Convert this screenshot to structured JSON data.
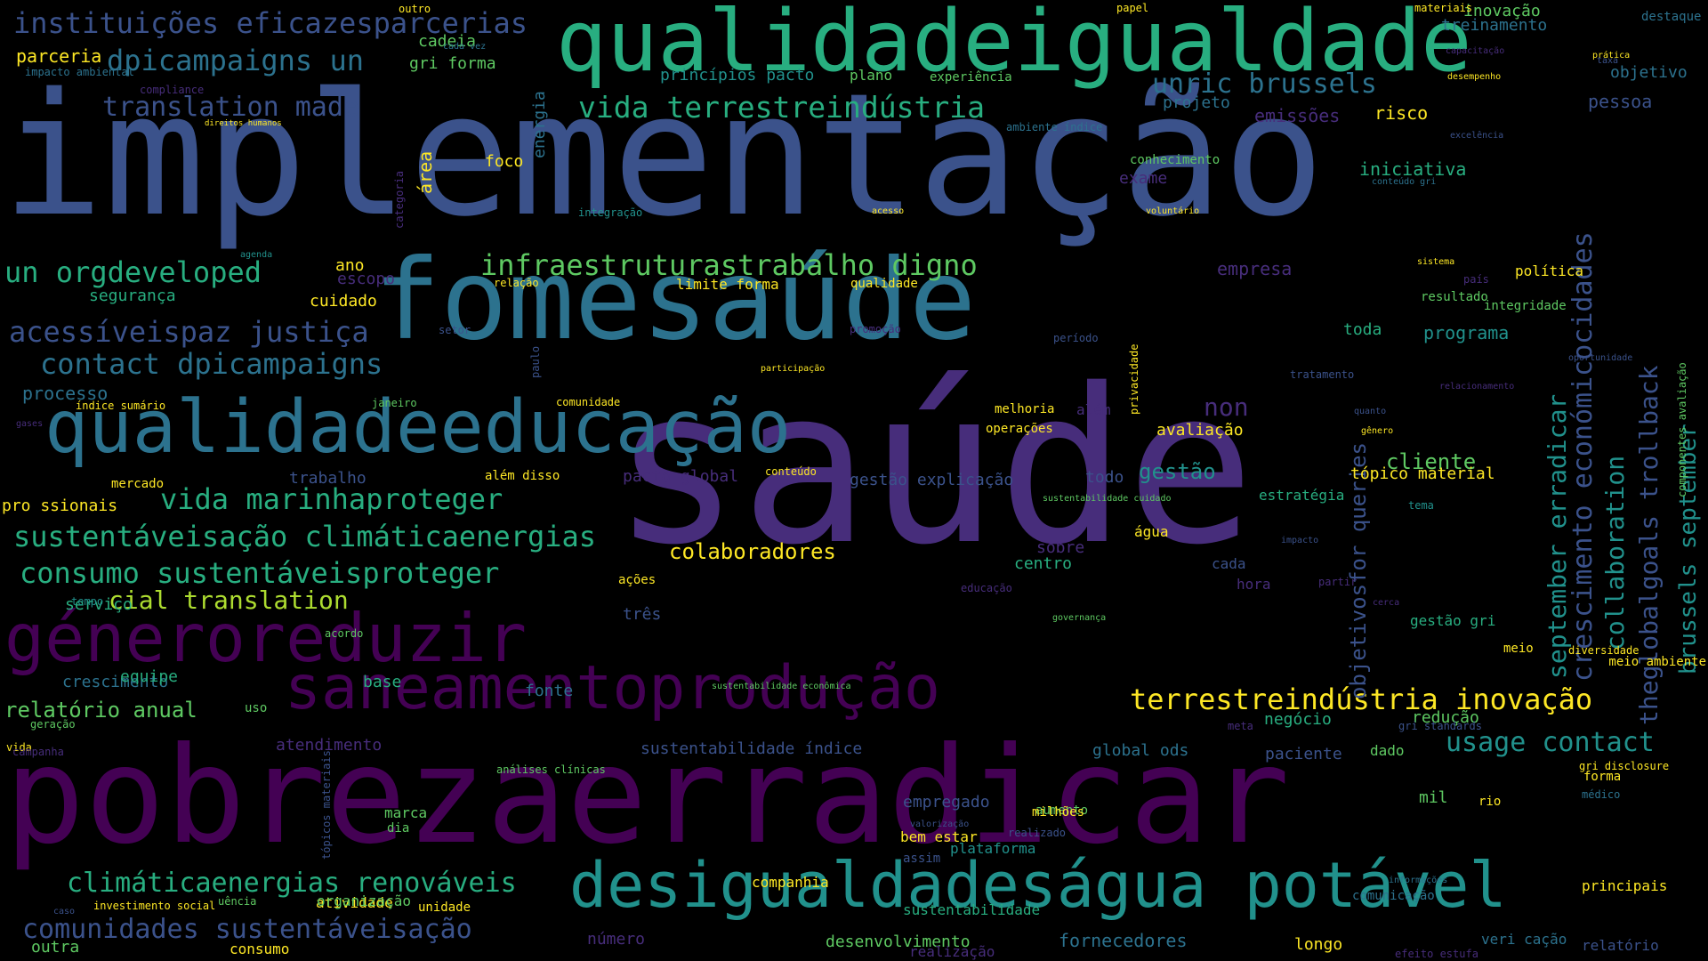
{
  "colors": {
    "background": "#000000",
    "dark_purple": "#440154",
    "purple": "#472d7b",
    "indigo": "#3b528b",
    "blue": "#2c728e",
    "teal": "#21918c",
    "green": "#28ae80",
    "light_green": "#5ec962",
    "yellow_green": "#addc30",
    "yellow": "#fde725"
  },
  "words": [
    "saúde",
    "implementação",
    "pobrezaerradicar",
    "fomesaúde",
    "qualidadeigualdade",
    "qualidadeeducação",
    "desigualdadeságua potável",
    "saneamentoprodução",
    "géneroreduzir",
    "instituições eficazesparcerias",
    "dpicampaigns un",
    "translation made",
    "vida terrestreindústria",
    "unric brussels",
    "infraestruturastrabalho digno",
    "un orgdeveloped",
    "acessíveispaz justiça",
    "contact dpicampaigns",
    "vida marinhaproteger",
    "sustentáveisação climáticaenergias",
    "consumo sustentáveisproteger",
    "cial translation",
    "terrestreindústria inovação",
    "usage contact",
    "climáticaenergias renováveis",
    "comunidades sustentáveisação",
    "relatório anual",
    "colaboradores",
    "cliente",
    "gestão",
    "non",
    "crescimento económicocidades",
    "september erradicar",
    "collaboration",
    "theglobalgoals trollback",
    "brussels september",
    "objetivosfor queries",
    "parceria",
    "cadeia",
    "gri forma",
    "princípios pacto",
    "plano",
    "experiência",
    "projeto",
    "emissões",
    "risco",
    "treinamento",
    "inovação",
    "destaque",
    "objetivo",
    "pessoa",
    "iniciativa",
    "conhecimento",
    "exame",
    "foco",
    "área",
    "energia",
    "empresa",
    "ano",
    "escopo",
    "cuidado",
    "segurança",
    "processo",
    "limite forma",
    "qualidade",
    "programa",
    "política",
    "integridade",
    "resultado",
    "toda",
    "melhoria",
    "além",
    "operações",
    "avaliação",
    "trabalho",
    "além disso",
    "mercado",
    "pacto global",
    "gestão explicação",
    "tópico material",
    "todo",
    "estratégia",
    "pro ssionais",
    "água",
    "sobre",
    "centro",
    "cada",
    "hora",
    "ações",
    "três",
    "gestão gri",
    "serviço",
    "meio",
    "meio ambiente",
    "diversidade",
    "crescimento",
    "equipe",
    "base",
    "fonte",
    "atendimento",
    "sustentabilidade índice",
    "global ods",
    "redução",
    "negócio",
    "paciente",
    "dado",
    "forma",
    "médico",
    "empregado",
    "mil",
    "marca",
    "aumento",
    "assim",
    "milhões",
    "rio",
    "dia",
    "principais",
    "atividade",
    "plataforma",
    "bem estar",
    "companhia",
    "sustentabilidade",
    "unidade",
    "organização",
    "número",
    "desenvolvimento",
    "fornecedores",
    "longo",
    "veri cação",
    "outra",
    "consumo",
    "uência",
    "relatório",
    "realização",
    "comunicação",
    "outro",
    "papel",
    "materiais",
    "cada vez",
    "impacto ambiental",
    "compliance",
    "direitos humanos",
    "ambiente índice",
    "capacitação",
    "excelência",
    "prática",
    "taxa",
    "desempenho",
    "integração",
    "acesso",
    "voluntário",
    "conteúdo gri",
    "sistema",
    "categoria",
    "agenda",
    "relação",
    "país",
    "setor",
    "promoção",
    "período",
    "paulo",
    "participação",
    "oportunidade",
    "tratamento",
    "relacionamento",
    "janeiro",
    "comunidade",
    "privacidade",
    "quanto",
    "gênero",
    "índice sumário",
    "gases",
    "conteúdo",
    "sustentabilidade cuidado",
    "tema",
    "componentes avaliação",
    "impacto",
    "tempo",
    "educação",
    "governança",
    "cerca",
    "partir",
    "acordo",
    "sustentabilidade econômica",
    "uso",
    "geração",
    "meta",
    "gri standards",
    "vida",
    "campanha",
    "análises clínicas",
    "gri disclosure",
    "valorização",
    "realizado",
    "tópicos materiais",
    "informações",
    "caso",
    "investimento social",
    "efeito estufa"
  ]
}
